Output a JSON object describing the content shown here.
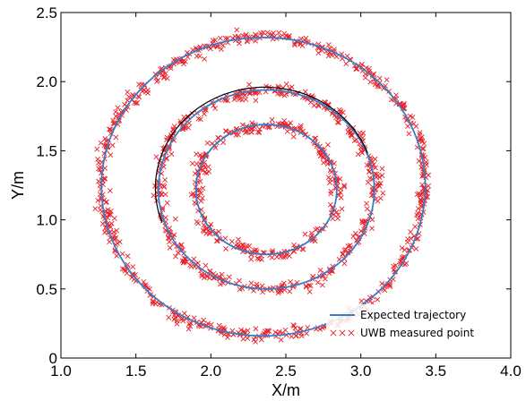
{
  "chart_data": {
    "type": "scatter",
    "title": "",
    "xlabel": "X/m",
    "ylabel": "Y/m",
    "xlim": [
      1.0,
      4.0
    ],
    "ylim": [
      0.0,
      2.5
    ],
    "xticks": [
      "1.0",
      "1.5",
      "2.0",
      "2.5",
      "3.0",
      "3.5",
      "4.0"
    ],
    "yticks": [
      "0",
      "0.5",
      "1.0",
      "1.5",
      "2.0",
      "2.5"
    ],
    "grid": false,
    "legend_position": "bottom-right",
    "series": [
      {
        "name": "Expected trajectory",
        "kind": "line",
        "color": "#3b7dc4",
        "circles": [
          {
            "cx": 2.35,
            "cy": 1.24,
            "r": 1.08
          },
          {
            "cx": 2.37,
            "cy": 1.22,
            "r": 0.72
          },
          {
            "cx": 2.37,
            "cy": 1.22,
            "r": 0.47
          }
        ]
      },
      {
        "name": "UWB measured point",
        "kind": "scatter",
        "marker": "x",
        "color": "#e8202a",
        "noise_sd_m": 0.022,
        "points_per_ring": [
          620,
          420,
          300
        ]
      }
    ],
    "extra_path": {
      "color": "#000000",
      "cx": 2.36,
      "cy": 1.23,
      "r": 0.73,
      "from_deg": 20,
      "to_deg": 200
    }
  }
}
